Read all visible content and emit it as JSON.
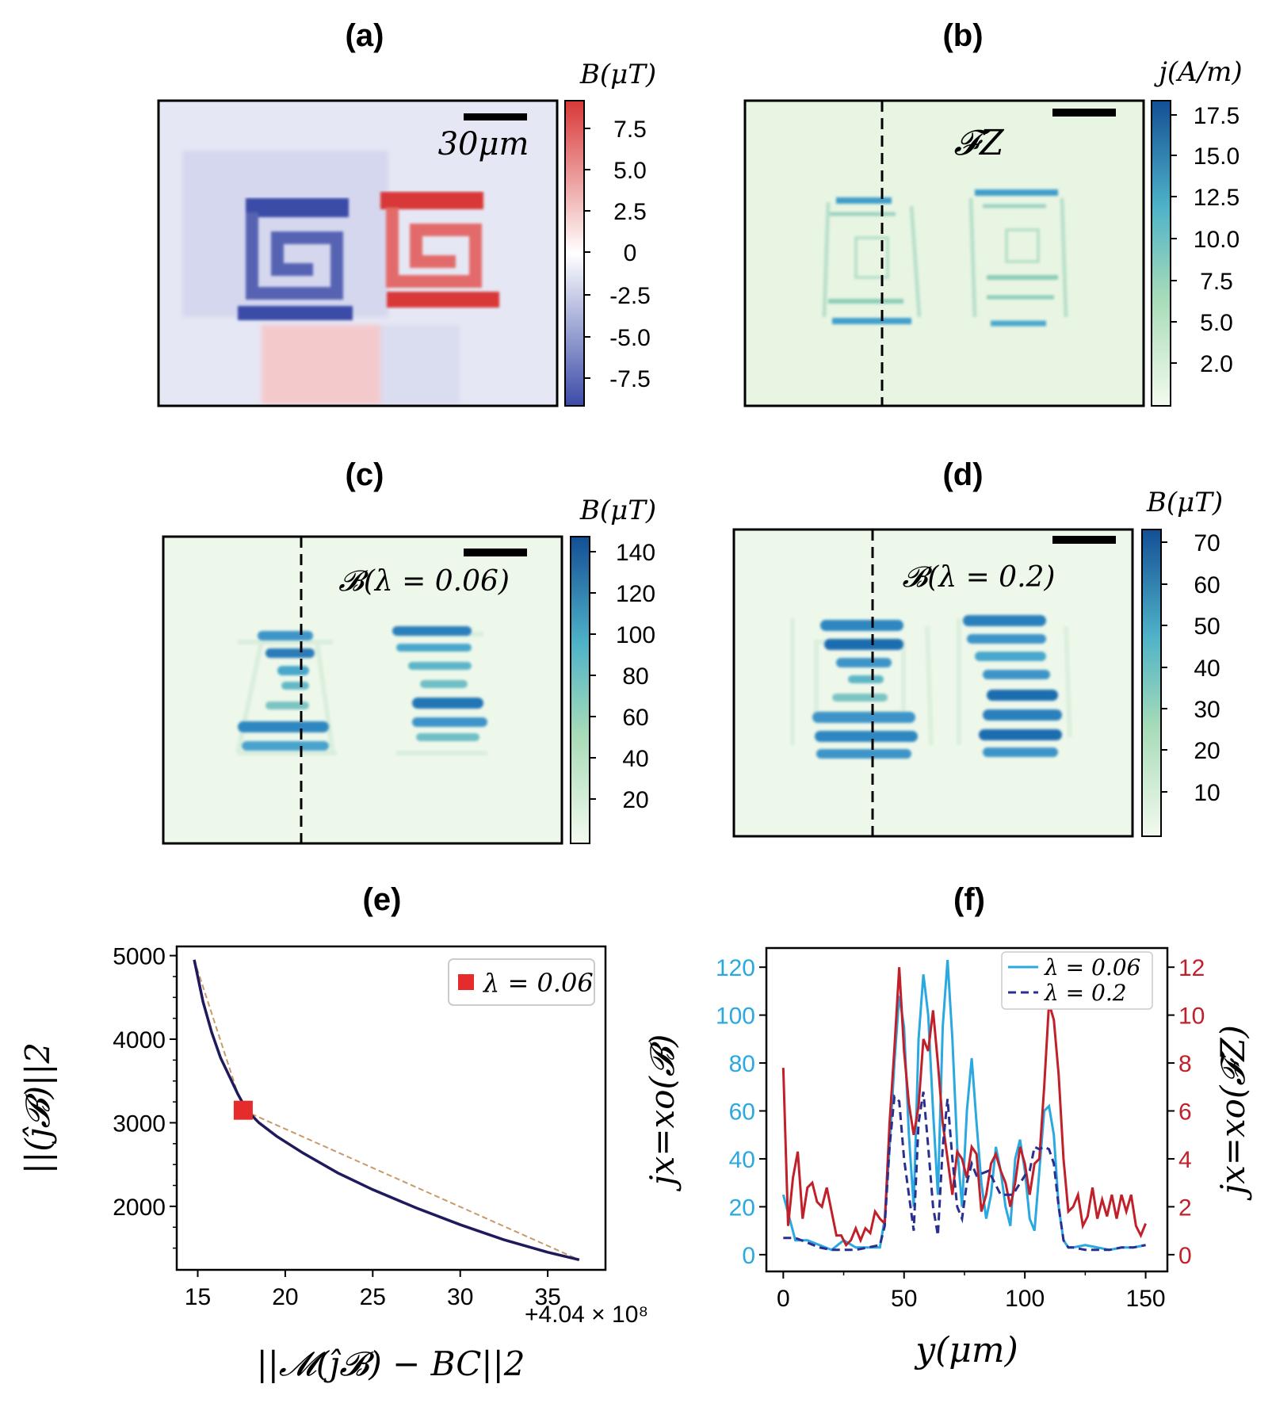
{
  "panels": {
    "a": {
      "title": "(a)",
      "cbar_label": "B(μT)",
      "scalebar_label": "30μm",
      "cbar_ticks": [
        "7.5",
        "5.0",
        "2.5",
        "0",
        "-2.5",
        "-5.0",
        "-7.5"
      ]
    },
    "b": {
      "title": "(b)",
      "cbar_label": "j(A/m)",
      "annotation": "𝓕Z",
      "cbar_ticks": [
        "17.5",
        "15.0",
        "12.5",
        "10.0",
        "7.5",
        "5.0",
        "2.0"
      ]
    },
    "c": {
      "title": "(c)",
      "cbar_label": "B(μT)",
      "annotation": "𝓑(λ = 0.06)",
      "cbar_ticks": [
        "140",
        "120",
        "100",
        "80",
        "60",
        "40",
        "20"
      ]
    },
    "d": {
      "title": "(d)",
      "cbar_label": "B(μT)",
      "annotation": "𝓑(λ = 0.2)",
      "cbar_ticks": [
        "70",
        "60",
        "50",
        "40",
        "30",
        "20",
        "10"
      ]
    },
    "e": {
      "title": "(e)"
    },
    "f": {
      "title": "(f)"
    }
  },
  "colors": {
    "diverging_neg": "#3b4ba8",
    "diverging_pos": "#d93838",
    "seq_light": "#f3faef",
    "seq_mid": "#5cb8c6",
    "seq_dark": "#1d5b9e",
    "curve_e": "#1f1a5c",
    "chord_e": "#c89a6a",
    "marker_e": "#e52b2b",
    "f_cyan": "#2aa8e0",
    "f_navy": "#2a2f8f",
    "f_red": "#c0202a"
  },
  "chart_data": [
    {
      "panel": "e",
      "type": "line",
      "xlabel": "||𝓜(ĵ𝓑) − BC||2",
      "ylabel": "||(ĵ𝓑)||2",
      "x_offset_label": "+4.04 × 10⁸",
      "xticks": [
        "15",
        "20",
        "25",
        "30",
        "35"
      ],
      "yticks": [
        "2000",
        "3000",
        "4000",
        "5000"
      ],
      "xlim": [
        13.8,
        38.3
      ],
      "ylim": [
        1240,
        5110
      ],
      "series": [
        {
          "x": [
            14.8,
            15.3,
            15.8,
            16.3,
            16.8,
            17.3,
            17.8,
            18.5,
            19.5,
            21,
            23,
            25,
            27.5,
            30,
            32.5,
            35,
            36.8
          ],
          "y": [
            4950,
            4450,
            4080,
            3780,
            3560,
            3340,
            3150,
            3000,
            2840,
            2640,
            2400,
            2200,
            1980,
            1780,
            1600,
            1450,
            1360
          ]
        }
      ],
      "chords": [
        {
          "x": [
            14.8,
            17.6
          ],
          "y": [
            4950,
            3150
          ]
        },
        {
          "x": [
            17.6,
            36.8
          ],
          "y": [
            3150,
            1360
          ]
        }
      ],
      "marker": {
        "x": 17.6,
        "y": 3150,
        "label": "λ = 0.06"
      }
    },
    {
      "panel": "f",
      "type": "line",
      "xlabel": "y(μm)",
      "ylabel_left": "jx=xo(𝓑)",
      "ylabel_right": "jx=xo(𝓕Z)",
      "xticks": [
        "0",
        "50",
        "100",
        "150"
      ],
      "yticks_left": [
        "0",
        "20",
        "40",
        "60",
        "80",
        "100",
        "120"
      ],
      "yticks_right": [
        "0",
        "2",
        "4",
        "6",
        "8",
        "10",
        "12"
      ],
      "xlim": [
        -7,
        159
      ],
      "ylim_left": [
        -7,
        128
      ],
      "ylim_right": [
        -0.7,
        12.8
      ],
      "series": [
        {
          "name": "λ = 0.06",
          "axis": "left",
          "style": "solid",
          "x": [
            0,
            5,
            10,
            15,
            20,
            25,
            30,
            35,
            40,
            42,
            44,
            46,
            48,
            50,
            52,
            54,
            56,
            58,
            60,
            62,
            64,
            66,
            68,
            70,
            72,
            74,
            76,
            78,
            80,
            82,
            84,
            86,
            88,
            90,
            92,
            94,
            96,
            98,
            100,
            102,
            104,
            106,
            108,
            110,
            112,
            114,
            116,
            118,
            120,
            125,
            130,
            135,
            140,
            145,
            150
          ],
          "y": [
            25,
            6,
            6,
            4,
            2,
            6,
            3,
            3,
            3,
            15,
            45,
            80,
            108,
            95,
            50,
            20,
            90,
            117,
            100,
            60,
            25,
            95,
            123,
            90,
            45,
            20,
            60,
            82,
            55,
            30,
            15,
            25,
            45,
            35,
            20,
            12,
            40,
            48,
            35,
            15,
            10,
            35,
            60,
            62,
            50,
            20,
            6,
            3,
            3,
            4,
            3,
            2,
            3,
            3,
            4
          ]
        },
        {
          "name": "λ = 0.2",
          "axis": "left",
          "style": "dashed",
          "x": [
            0,
            5,
            10,
            15,
            20,
            25,
            30,
            35,
            40,
            42,
            44,
            46,
            48,
            50,
            52,
            54,
            56,
            58,
            60,
            62,
            64,
            66,
            68,
            70,
            72,
            74,
            76,
            78,
            80,
            85,
            90,
            95,
            100,
            102,
            104,
            106,
            108,
            110,
            112,
            114,
            116,
            118,
            120,
            125,
            130,
            135,
            140,
            145,
            150
          ],
          "y": [
            7,
            7,
            5,
            3,
            2,
            2,
            2,
            3,
            4,
            12,
            45,
            66,
            64,
            40,
            25,
            10,
            55,
            68,
            45,
            20,
            8,
            45,
            65,
            40,
            20,
            15,
            30,
            38,
            33,
            35,
            25,
            25,
            33,
            35,
            45,
            44,
            45,
            44,
            38,
            20,
            6,
            3,
            3,
            2,
            2,
            2,
            3,
            3,
            4
          ]
        },
        {
          "name": "",
          "axis": "right",
          "style": "solid",
          "x": [
            0,
            2,
            4,
            6,
            8,
            10,
            12,
            14,
            16,
            18,
            20,
            22,
            24,
            26,
            28,
            30,
            32,
            34,
            36,
            38,
            40,
            42,
            44,
            46,
            48,
            50,
            52,
            54,
            56,
            58,
            60,
            62,
            64,
            66,
            68,
            70,
            72,
            74,
            76,
            78,
            80,
            82,
            84,
            86,
            88,
            90,
            92,
            94,
            96,
            98,
            100,
            102,
            104,
            106,
            108,
            110,
            112,
            114,
            116,
            118,
            120,
            122,
            124,
            126,
            128,
            130,
            132,
            134,
            136,
            138,
            140,
            142,
            144,
            146,
            148,
            150
          ],
          "y": [
            7.8,
            1.2,
            3.2,
            4.3,
            1.5,
            2.8,
            3.0,
            2.2,
            2.0,
            2.8,
            1.8,
            0.8,
            0.8,
            0.4,
            0.6,
            1.1,
            0.6,
            1.1,
            0.9,
            1.8,
            1.5,
            1.3,
            5.5,
            8.6,
            12.0,
            8.5,
            6.3,
            5.0,
            6.2,
            9.0,
            8.5,
            10.2,
            8.0,
            5.5,
            4.0,
            2.5,
            4.3,
            4.0,
            3.2,
            4.5,
            4.2,
            1.8,
            2.5,
            3.8,
            4.2,
            3.5,
            3.0,
            2.0,
            3.0,
            4.5,
            3.8,
            2.5,
            3.8,
            4.0,
            7.0,
            10.5,
            9.8,
            7.5,
            4.0,
            1.8,
            2.0,
            2.5,
            1.2,
            1.6,
            2.8,
            1.5,
            2.3,
            1.6,
            2.5,
            1.5,
            2.5,
            1.8,
            2.5,
            1.2,
            0.8,
            1.3
          ]
        }
      ]
    }
  ]
}
